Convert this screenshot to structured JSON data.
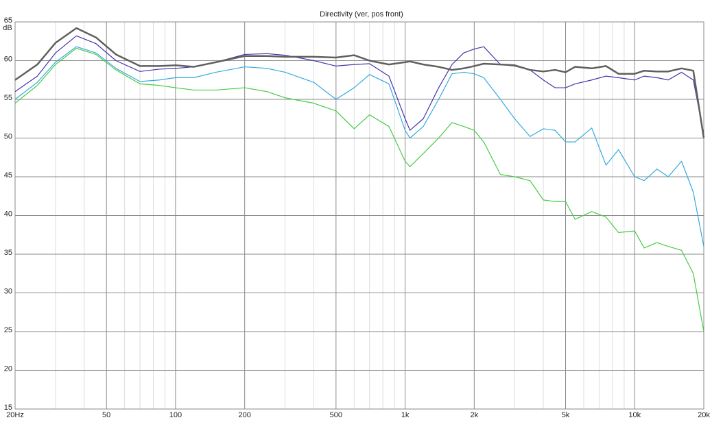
{
  "chart_data": {
    "type": "line",
    "title": "Directivity (ver, pos front)",
    "ylabel": "dB",
    "log_x": true,
    "grid": true,
    "xlim": [
      20,
      20000
    ],
    "ylim": [
      15,
      65
    ],
    "xticks": [
      {
        "value": 20,
        "label": "20Hz"
      },
      50,
      100,
      200,
      500,
      {
        "value": 1000,
        "label": "1k"
      },
      {
        "value": 2000,
        "label": "2k"
      },
      {
        "value": 5000,
        "label": "5k"
      },
      {
        "value": 10000,
        "label": "10k"
      },
      {
        "value": 20000,
        "label": "20k"
      }
    ],
    "xminorticks": [
      30,
      40,
      60,
      70,
      80,
      90,
      300,
      400,
      600,
      700,
      800,
      900,
      3000,
      4000,
      6000,
      7000,
      8000,
      9000
    ],
    "yticks": [
      15,
      20,
      25,
      30,
      35,
      40,
      45,
      50,
      55,
      60,
      65
    ],
    "x": [
      20,
      25,
      30,
      37,
      45,
      55,
      70,
      85,
      100,
      120,
      150,
      200,
      250,
      300,
      400,
      500,
      600,
      700,
      850,
      1000,
      1050,
      1200,
      1400,
      1600,
      1800,
      2000,
      2200,
      2600,
      3000,
      3500,
      4000,
      4500,
      5000,
      5500,
      6500,
      7500,
      8500,
      10000,
      11000,
      12500,
      14000,
      16000,
      18000,
      20000
    ],
    "series": [
      {
        "color": "#33aadd",
        "width": 1.2,
        "values": [
          55,
          57.2,
          59.8,
          61.8,
          61,
          59,
          57.3,
          57.5,
          57.8,
          57.8,
          58.5,
          59.2,
          59,
          58.5,
          57.2,
          55,
          56.5,
          58.2,
          57,
          51,
          50,
          51.5,
          55,
          58.3,
          58.5,
          58.3,
          57.8,
          55,
          52.5,
          50.2,
          51.2,
          51,
          49.5,
          49.5,
          51.3,
          46.5,
          48.5,
          45,
          44.5,
          46,
          45,
          47,
          43,
          36
        ]
      },
      {
        "color": "#44cc44",
        "width": 1.2,
        "values": [
          54.5,
          56.8,
          59.5,
          61.6,
          60.8,
          58.8,
          57,
          56.8,
          56.5,
          56.2,
          56.2,
          56.5,
          56,
          55.2,
          54.5,
          53.5,
          51.2,
          53,
          51.5,
          47,
          46.3,
          48,
          50,
          52,
          51.5,
          51,
          49.5,
          45.3,
          45,
          44.5,
          42,
          41.8,
          41.8,
          39.5,
          40.5,
          39.8,
          37.8,
          38,
          35.8,
          36.5,
          36,
          35.5,
          32.5,
          25
        ]
      },
      {
        "color": "#4433aa",
        "width": 1.2,
        "values": [
          56,
          58,
          61,
          63.2,
          62.2,
          60,
          58.6,
          58.9,
          59,
          59.2,
          59.8,
          60.8,
          60.9,
          60.7,
          60,
          59.3,
          59.5,
          59.6,
          58,
          52.5,
          51,
          52.5,
          56.5,
          59.5,
          61,
          61.5,
          61.8,
          59.5,
          59.3,
          58.8,
          57.5,
          56.5,
          56.5,
          57,
          57.5,
          58,
          57.8,
          57.5,
          58,
          57.8,
          57.5,
          58.5,
          57.5,
          50.5
        ]
      },
      {
        "color": "#5f5f5f",
        "width": 2.5,
        "values": [
          57.5,
          59.5,
          62.3,
          64.2,
          63,
          60.8,
          59.3,
          59.3,
          59.4,
          59.2,
          59.8,
          60.6,
          60.6,
          60.5,
          60.5,
          60.4,
          60.7,
          60,
          59.5,
          59.8,
          59.9,
          59.5,
          59.2,
          58.8,
          59,
          59.3,
          59.6,
          59.5,
          59.4,
          58.8,
          58.6,
          58.8,
          58.5,
          59.2,
          59,
          59.3,
          58.3,
          58.3,
          58.7,
          58.6,
          58.6,
          59,
          58.7,
          50
        ]
      }
    ]
  }
}
